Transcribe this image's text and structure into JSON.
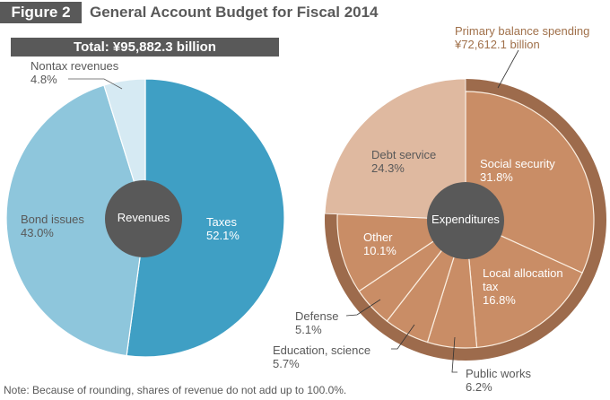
{
  "header": {
    "figure_tag": "Figure 2",
    "title": "General Account Budget for Fiscal 2014"
  },
  "note": "Note: Because of rounding, shares of revenue do not add up to 100.0%.",
  "colors": {
    "taxes": "#3f9fc4",
    "bond_issues": "#8ec6dc",
    "nontax": "#d6eaf3",
    "center": "#595959",
    "debt_service": "#dfb9a0",
    "primary_slices": "#c98d66",
    "primary_ring": "#9d6b4c",
    "separator": "#fbeee0"
  },
  "chart_data": [
    {
      "type": "pie",
      "title": "Revenues",
      "banner": "Total: ¥95,882.3 billion",
      "slices": [
        {
          "label": "Taxes",
          "value": 52.1,
          "unit": "%",
          "display": "52.1%"
        },
        {
          "label": "Bond issues",
          "value": 43.0,
          "unit": "%",
          "display": "43.0%"
        },
        {
          "label": "Nontax revenues",
          "value": 4.8,
          "unit": "%",
          "display": "4.8%"
        }
      ]
    },
    {
      "type": "pie",
      "title": "Expenditures",
      "group_annotation": {
        "label": "Primary balance spending",
        "value": "¥72,612.1 billion"
      },
      "slices": [
        {
          "label": "Social security",
          "value": 31.8,
          "unit": "%",
          "display": "31.8%",
          "group": "primary"
        },
        {
          "label": "Local allocation tax",
          "value": 16.8,
          "unit": "%",
          "display": "16.8%",
          "group": "primary"
        },
        {
          "label": "Public works",
          "value": 6.2,
          "unit": "%",
          "display": "6.2%",
          "group": "primary"
        },
        {
          "label": "Education, science",
          "value": 5.7,
          "unit": "%",
          "display": "5.7%",
          "group": "primary"
        },
        {
          "label": "Defense",
          "value": 5.1,
          "unit": "%",
          "display": "5.1%",
          "group": "primary"
        },
        {
          "label": "Other",
          "value": 10.1,
          "unit": "%",
          "display": "10.1%",
          "group": "primary"
        },
        {
          "label": "Debt service",
          "value": 24.3,
          "unit": "%",
          "display": "24.3%",
          "group": "debt"
        }
      ]
    }
  ],
  "labels": {
    "taxes_name": "Taxes",
    "bond_name": "Bond issues",
    "nontax_name": "Nontax revenues",
    "social_name": "Social security",
    "local_name_1": "Local allocation",
    "local_name_2": "tax",
    "public_name": "Public works",
    "edu_name": "Education, science",
    "defense_name": "Defense",
    "other_name": "Other",
    "debt_name": "Debt service"
  }
}
